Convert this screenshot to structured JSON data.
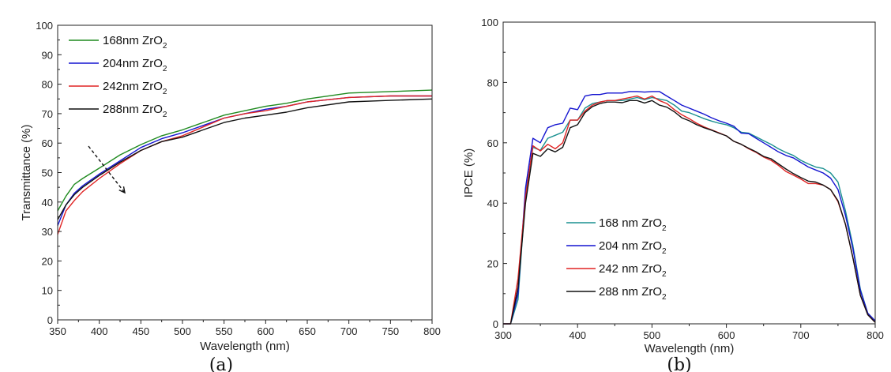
{
  "chart_data": [
    {
      "type": "line",
      "panel_label": "(a)",
      "title": "",
      "xlabel": "Wavelength (nm)",
      "ylabel": "Transmittance (%)",
      "xlim": [
        350,
        800
      ],
      "ylim": [
        0,
        100
      ],
      "xticks": [
        350,
        400,
        450,
        500,
        550,
        600,
        650,
        700,
        750,
        800
      ],
      "yticks": [
        0,
        10,
        20,
        30,
        40,
        50,
        60,
        70,
        80,
        90,
        100
      ],
      "grid": false,
      "legend_position": "top-left",
      "annotation": "dashed arrow indicating decreasing transmittance with increasing ZrO2 thickness",
      "x": [
        350,
        360,
        370,
        380,
        400,
        425,
        450,
        475,
        500,
        525,
        550,
        575,
        600,
        625,
        650,
        700,
        750,
        800
      ],
      "series": [
        {
          "name": "168nm ZrO2",
          "color": "#1f8a1f",
          "values": [
            37,
            42,
            46,
            48,
            51.5,
            56,
            59.5,
            62.5,
            64.5,
            67,
            69.5,
            71,
            72.5,
            73.5,
            75,
            77,
            77.5,
            78
          ]
        },
        {
          "name": "204nm ZrO2",
          "color": "#1414d0",
          "values": [
            32,
            39,
            43,
            45.5,
            49.5,
            54,
            58.5,
            61.5,
            63.5,
            66,
            68.5,
            70,
            71.5,
            72.5,
            74,
            75.5,
            76,
            76
          ]
        },
        {
          "name": "242nm ZrO2",
          "color": "#e02424",
          "values": [
            29,
            37,
            40.5,
            43.5,
            48,
            53,
            57.5,
            60.5,
            62.5,
            65.5,
            68.5,
            70,
            71,
            72.5,
            74,
            75.5,
            76,
            76
          ]
        },
        {
          "name": "288nm ZrO2",
          "color": "#111111",
          "values": [
            34,
            39,
            42.5,
            45,
            49,
            53.5,
            57.5,
            60.5,
            62,
            64.5,
            67,
            68.5,
            69.5,
            70.5,
            72,
            74,
            74.5,
            75
          ]
        }
      ]
    },
    {
      "type": "line",
      "panel_label": "(b)",
      "title": "",
      "xlabel": "Wavelength (nm)",
      "ylabel": "IPCE (%)",
      "xlim": [
        300,
        800
      ],
      "ylim": [
        0,
        100
      ],
      "xticks": [
        300,
        400,
        500,
        600,
        700,
        800
      ],
      "yticks": [
        0,
        20,
        40,
        60,
        80,
        100
      ],
      "grid": false,
      "legend_position": "bottom-left",
      "x": [
        300,
        310,
        320,
        330,
        340,
        350,
        360,
        370,
        380,
        390,
        400,
        410,
        420,
        430,
        440,
        450,
        460,
        470,
        480,
        490,
        500,
        510,
        520,
        530,
        540,
        550,
        560,
        570,
        580,
        590,
        600,
        610,
        620,
        630,
        640,
        650,
        660,
        670,
        680,
        690,
        700,
        710,
        720,
        730,
        740,
        750,
        760,
        770,
        780,
        790,
        800
      ],
      "series": [
        {
          "name": "168 nm ZrO2",
          "color": "#1a9090",
          "values": [
            0,
            0,
            8,
            43,
            58.5,
            57.5,
            61.5,
            62.5,
            63.5,
            67.5,
            67.5,
            71.5,
            73,
            73.5,
            74,
            74,
            74,
            74.5,
            75,
            74.3,
            75,
            74.5,
            74,
            72.5,
            70.5,
            70,
            69,
            68,
            67.2,
            66.5,
            66,
            65,
            63.5,
            63.2,
            62,
            60.7,
            59.5,
            58,
            56.8,
            55.8,
            54.2,
            53,
            52,
            51.5,
            50,
            47,
            37.5,
            26,
            11.5,
            3.5,
            1
          ]
        },
        {
          "name": "204 nm ZrO2",
          "color": "#1414d0",
          "values": [
            0,
            0,
            10,
            45,
            61.5,
            60,
            65,
            66,
            66.5,
            71.5,
            71,
            75.5,
            76,
            76,
            76.5,
            76.5,
            76.5,
            77,
            77,
            76.8,
            77,
            77,
            75.5,
            74,
            72.5,
            71.5,
            70.5,
            69.5,
            68.3,
            67.3,
            66.5,
            65.5,
            63.2,
            63,
            61.5,
            60,
            58.5,
            57,
            55.8,
            55,
            53.5,
            52,
            51,
            50,
            48.3,
            44.5,
            36,
            25,
            11,
            3.5,
            1
          ]
        },
        {
          "name": "242 nm ZrO2",
          "color": "#e02424",
          "values": [
            0,
            0,
            15,
            42,
            59,
            57.3,
            59.5,
            58,
            60,
            67.5,
            67.5,
            70.5,
            72.5,
            73.5,
            74,
            74,
            74.5,
            75,
            75.5,
            74.5,
            75.5,
            74,
            73,
            71,
            69.3,
            68,
            66.5,
            65.3,
            64.3,
            63.3,
            62.3,
            60.5,
            59.5,
            58,
            56.8,
            55.3,
            54.2,
            52.5,
            50.5,
            49.3,
            48,
            46.5,
            46.5,
            46,
            44.5,
            40.5,
            33,
            22,
            9.5,
            3,
            0.5
          ]
        },
        {
          "name": "288 nm ZrO2",
          "color": "#111111",
          "values": [
            0,
            0,
            12,
            40,
            56.5,
            55.5,
            58,
            57,
            58.5,
            65,
            66,
            70,
            72,
            73,
            73.5,
            73.5,
            73.3,
            74,
            74,
            73.2,
            74,
            72.5,
            71.8,
            70.3,
            68.3,
            67.3,
            66,
            65,
            64.2,
            63.2,
            62.3,
            60.5,
            59.5,
            58.2,
            57,
            55.5,
            54.7,
            53,
            51.3,
            49.8,
            48.5,
            47.3,
            47,
            46,
            44.5,
            40.8,
            33,
            22,
            9.5,
            3,
            0.5
          ]
        }
      ]
    }
  ]
}
